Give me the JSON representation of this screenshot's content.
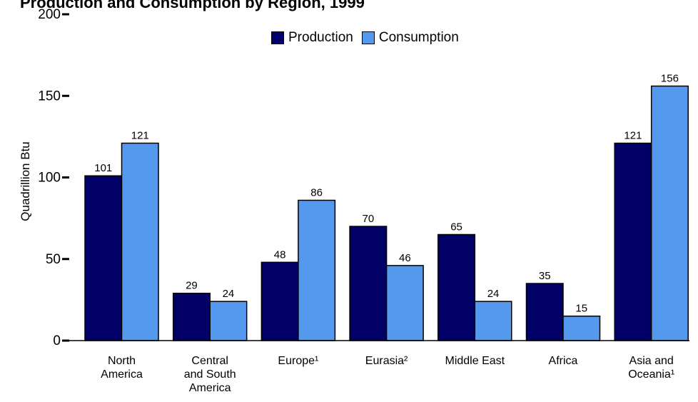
{
  "chart_data": {
    "type": "bar",
    "title": "Production and Consumption by Region, 1999",
    "ylabel": "Quadrillion Btu",
    "xlabel": "",
    "ylim": [
      0,
      200
    ],
    "yticks": [
      0,
      50,
      100,
      150,
      200
    ],
    "grid": false,
    "legend_position": "top",
    "categories": [
      [
        "North",
        "America"
      ],
      [
        "Central",
        "and South",
        "America"
      ],
      [
        "Europe¹"
      ],
      [
        "Eurasia²"
      ],
      [
        "Middle East"
      ],
      [
        "Africa"
      ],
      [
        "Asia and",
        "Oceania¹"
      ]
    ],
    "series": [
      {
        "name": "Production",
        "color": "#000066",
        "values": [
          101,
          29,
          48,
          70,
          65,
          35,
          121
        ]
      },
      {
        "name": "Consumption",
        "color": "#5599ee",
        "values": [
          121,
          24,
          86,
          46,
          24,
          15,
          156
        ]
      }
    ]
  }
}
